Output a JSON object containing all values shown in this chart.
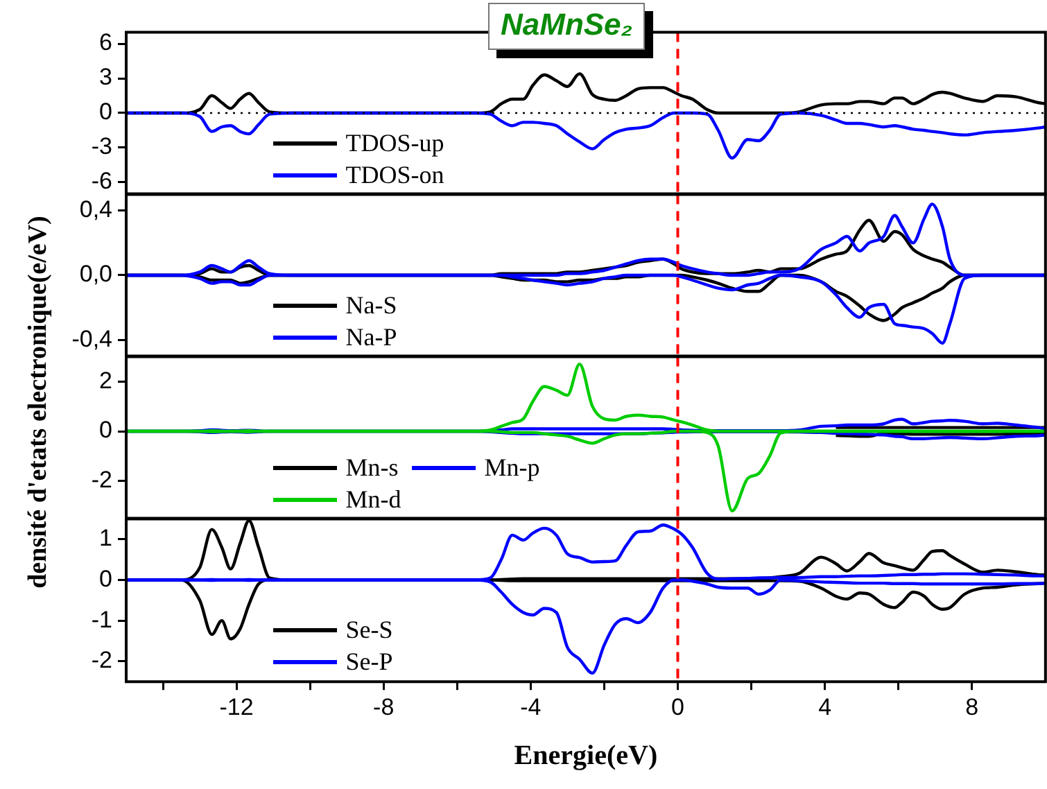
{
  "chart_data": [
    {
      "type": "line",
      "title": "NaMnSe₂",
      "ylabel": "densité d'etats electronique(e/eV)",
      "x": [
        -15,
        -13.5,
        -13,
        -12.67,
        -12.4,
        -12.16,
        -11.9,
        -11.66,
        -11.4,
        -11.1,
        -10.5,
        -5.5,
        -5.1,
        -4.8,
        -4.5,
        -4.2,
        -3.94,
        -3.63,
        -3.3,
        -3,
        -2.67,
        -2.32,
        -2,
        -1.7,
        -1.4,
        -1.08,
        -0.75,
        -0.4,
        -0.1,
        0.1,
        0.4,
        0.8,
        1.1,
        1.48,
        1.9,
        2.2,
        2.5,
        2.8,
        3.3,
        3.9,
        4.3,
        4.6,
        4.95,
        5.2,
        5.6,
        5.9,
        6.1,
        6.4,
        6.7,
        6.92,
        7.2,
        7.4,
        7.8,
        8.3,
        8.7,
        9.2,
        9.8,
        10
      ],
      "xlim": [
        -15,
        10
      ],
      "ylim": [
        -7,
        7
      ],
      "yticks": [
        -6,
        -3,
        0,
        3,
        6
      ],
      "tick_labels": "y",
      "grid": false,
      "legend": "bottom left",
      "ref_lines": [
        {
          "axis": "y",
          "value": 0,
          "color": "#000000",
          "line_style": "dotted"
        },
        {
          "axis": "x",
          "value": 0,
          "color": "#ff0000",
          "line_style": "dashed"
        }
      ],
      "series": [
        {
          "name": "TDOS-up",
          "color": "#000000",
          "values": [
            0,
            0,
            0.3,
            1.5,
            0.9,
            0.4,
            1.2,
            1.7,
            0.9,
            0.1,
            0,
            0,
            0.1,
            0.8,
            1.2,
            1.2,
            2.4,
            3.3,
            2.8,
            2.3,
            3.4,
            1.6,
            1.2,
            1.1,
            1.5,
            2.1,
            2.2,
            2.2,
            1.8,
            1.5,
            1.2,
            0.3,
            0,
            0,
            0,
            0,
            0,
            0,
            0.1,
            0.7,
            0.8,
            0.8,
            1.0,
            1.0,
            0.8,
            1.3,
            1.3,
            0.8,
            1.2,
            1.6,
            1.8,
            1.7,
            1.3,
            1.0,
            1.5,
            1.4,
            0.9,
            0.8
          ]
        },
        {
          "name": "TDOS-on",
          "color": "#0000ff",
          "values": [
            0,
            0,
            -0.3,
            -1.6,
            -1.2,
            -1.1,
            -1.6,
            -1.8,
            -1.0,
            -0.1,
            0,
            0,
            -0.1,
            -0.7,
            -1.1,
            -0.8,
            -0.8,
            -0.9,
            -1.1,
            -1.8,
            -2.5,
            -3.1,
            -2.3,
            -1.7,
            -1.4,
            -1.3,
            -1.1,
            -0.4,
            0,
            0,
            0,
            -0.1,
            -1.5,
            -3.9,
            -2.3,
            -2.4,
            -1.5,
            -0.1,
            0,
            -0.2,
            -0.6,
            -0.9,
            -0.9,
            -1.0,
            -1.2,
            -1.1,
            -1.2,
            -1.4,
            -1.5,
            -1.6,
            -1.7,
            -1.8,
            -1.9,
            -1.7,
            -1.6,
            -1.5,
            -1.3,
            -1.2
          ]
        }
      ]
    },
    {
      "type": "line",
      "x": [
        -15,
        -13.5,
        -13,
        -12.67,
        -12.4,
        -12.16,
        -11.9,
        -11.66,
        -11.4,
        -11.1,
        -10.5,
        -5.5,
        -5.1,
        -4.8,
        -4.5,
        -4.2,
        -3.94,
        -3.63,
        -3.3,
        -3,
        -2.67,
        -2.32,
        -2,
        -1.7,
        -1.4,
        -1.08,
        -0.75,
        -0.4,
        -0.1,
        0.1,
        0.4,
        0.8,
        1.1,
        1.48,
        1.9,
        2.2,
        2.5,
        2.8,
        3.3,
        3.9,
        4.3,
        4.6,
        4.95,
        5.2,
        5.6,
        5.9,
        6.1,
        6.4,
        6.7,
        6.92,
        7.2,
        7.4,
        7.8,
        8.3,
        8.7,
        9.2,
        9.8,
        10
      ],
      "xlim": [
        -15,
        10
      ],
      "ylim": [
        -0.5,
        0.5
      ],
      "yticks": [
        {
          "value": -0.4,
          "label": "-0,4"
        },
        {
          "value": 0,
          "label": "0,0"
        },
        {
          "value": 0.4,
          "label": "0,4"
        }
      ],
      "tick_labels": "y",
      "grid": false,
      "legend": "bottom left",
      "ref_lines": [
        {
          "axis": "x",
          "value": 0,
          "color": "#ff0000",
          "line_style": "dashed"
        }
      ],
      "series": [
        {
          "name": "Na-S",
          "color": "#000000",
          "values": [
            0,
            0,
            0.01,
            0.04,
            0.02,
            0.02,
            0.05,
            0.06,
            0.03,
            0,
            0,
            0,
            0,
            0.01,
            0.01,
            0.01,
            0.01,
            0.01,
            0.01,
            0.02,
            0.02,
            0.03,
            0.04,
            0.05,
            0.06,
            0.08,
            0.09,
            0.1,
            0.07,
            0.04,
            0.02,
            0.01,
            0.01,
            0.01,
            0.02,
            0.03,
            0.02,
            0.04,
            0.04,
            0.1,
            0.13,
            0.15,
            0.28,
            0.34,
            0.21,
            0.27,
            0.25,
            0.16,
            0.12,
            0.1,
            0.08,
            0.05,
            0,
            0,
            0,
            0,
            0,
            0
          ]
        },
        {
          "color": "#000000",
          "values": [
            0,
            0,
            -0.01,
            -0.03,
            -0.03,
            -0.03,
            -0.05,
            -0.04,
            -0.02,
            0,
            0,
            0,
            0,
            -0.01,
            -0.02,
            -0.03,
            -0.03,
            -0.03,
            -0.04,
            -0.04,
            -0.03,
            -0.03,
            -0.02,
            -0.02,
            -0.01,
            -0.01,
            0,
            0,
            0,
            0,
            -0.01,
            -0.03,
            -0.05,
            -0.08,
            -0.1,
            -0.1,
            -0.05,
            0,
            0,
            -0.04,
            -0.1,
            -0.13,
            -0.19,
            -0.24,
            -0.28,
            -0.24,
            -0.2,
            -0.17,
            -0.14,
            -0.11,
            -0.08,
            -0.04,
            0,
            0,
            0,
            0,
            0,
            0
          ]
        },
        {
          "name": "Na-P",
          "color": "#0000ff",
          "values": [
            0,
            0,
            0.02,
            0.06,
            0.04,
            0.02,
            0.06,
            0.09,
            0.05,
            0.01,
            0,
            0,
            0,
            0,
            0,
            0,
            0,
            0,
            0,
            0.01,
            0.01,
            0.02,
            0.03,
            0.05,
            0.07,
            0.09,
            0.1,
            0.1,
            0.08,
            0.06,
            0.04,
            0.02,
            0.01,
            0,
            0,
            0.01,
            0.02,
            0.02,
            0.04,
            0.16,
            0.2,
            0.24,
            0.15,
            0.2,
            0.24,
            0.37,
            0.3,
            0.2,
            0.35,
            0.44,
            0.3,
            0.1,
            0,
            0,
            0,
            0,
            0,
            0
          ]
        },
        {
          "color": "#0000ff",
          "values": [
            0,
            0,
            -0.02,
            -0.05,
            -0.04,
            -0.04,
            -0.06,
            -0.06,
            -0.03,
            0,
            0,
            0,
            0,
            0,
            -0.01,
            -0.02,
            -0.03,
            -0.04,
            -0.05,
            -0.06,
            -0.05,
            -0.04,
            -0.02,
            -0.01,
            0,
            0,
            0,
            0,
            0,
            -0.01,
            -0.03,
            -0.06,
            -0.08,
            -0.09,
            -0.06,
            -0.05,
            -0.02,
            0,
            -0.01,
            -0.04,
            -0.12,
            -0.2,
            -0.26,
            -0.2,
            -0.18,
            -0.3,
            -0.31,
            -0.32,
            -0.33,
            -0.36,
            -0.42,
            -0.3,
            -0.02,
            0,
            0,
            0,
            0,
            0
          ]
        }
      ]
    },
    {
      "type": "line",
      "x": [
        -15,
        -13.5,
        -13,
        -12.67,
        -12.4,
        -12.16,
        -11.9,
        -11.66,
        -11.4,
        -11.1,
        -10.5,
        -5.5,
        -5.1,
        -4.8,
        -4.5,
        -4.2,
        -3.94,
        -3.63,
        -3.3,
        -3,
        -2.67,
        -2.32,
        -2,
        -1.7,
        -1.4,
        -1.08,
        -0.75,
        -0.4,
        -0.1,
        0.1,
        0.4,
        0.8,
        1.1,
        1.48,
        1.9,
        2.2,
        2.5,
        2.8,
        3.3,
        3.9,
        4.3,
        4.6,
        4.95,
        5.2,
        5.6,
        5.9,
        6.1,
        6.4,
        6.7,
        6.92,
        7.2,
        7.4,
        7.8,
        8.3,
        8.7,
        9.2,
        9.8,
        10
      ],
      "xlim": [
        -15,
        10
      ],
      "ylim": [
        -3.5,
        3
      ],
      "yticks": [
        -2,
        0,
        2
      ],
      "tick_labels": "y",
      "grid": false,
      "legend": "bottom left",
      "ref_lines": [
        {
          "axis": "x",
          "value": 0,
          "color": "#ff0000",
          "line_style": "dashed"
        }
      ],
      "series": [
        {
          "name": "Mn-s",
          "color": "#000000",
          "values": [
            null,
            null,
            null,
            null,
            null,
            null,
            null,
            null,
            null,
            null,
            null,
            null,
            null,
            null,
            null,
            null,
            null,
            null,
            null,
            null,
            null,
            null,
            null,
            null,
            null,
            null,
            null,
            null,
            null,
            null,
            null,
            null,
            null,
            null,
            null,
            null,
            null,
            null,
            null,
            null,
            0.15,
            0.15,
            0.15,
            0.15,
            0.15,
            0.15,
            0.15,
            0.15,
            0.15,
            0.15,
            0.15,
            0.15,
            0.15,
            0.15,
            0.15,
            0.15,
            0.15,
            0.15
          ]
        },
        {
          "color": "#000000",
          "values": [
            null,
            null,
            null,
            null,
            null,
            null,
            null,
            null,
            null,
            null,
            null,
            null,
            null,
            null,
            null,
            null,
            null,
            null,
            null,
            null,
            null,
            null,
            null,
            null,
            null,
            null,
            null,
            null,
            null,
            null,
            null,
            null,
            null,
            null,
            null,
            null,
            null,
            null,
            null,
            null,
            -0.17,
            -0.18,
            -0.2,
            -0.2,
            -0.08,
            -0.1,
            -0.1,
            -0.12,
            -0.12,
            -0.12,
            -0.12,
            -0.12,
            -0.12,
            -0.12,
            -0.12,
            -0.1,
            -0.08,
            -0.08
          ]
        },
        {
          "name": "Mn-p",
          "color": "#0000ff",
          "values": [
            0,
            0,
            0.02,
            0.06,
            0.04,
            0.02,
            0.03,
            0.04,
            0.02,
            0,
            0,
            0,
            0.02,
            0.05,
            0.1,
            0.1,
            0.1,
            0.1,
            0.1,
            0.1,
            0.1,
            0.1,
            0.1,
            0.1,
            0.1,
            0.1,
            0.1,
            0.1,
            0.08,
            0.06,
            0.04,
            0.02,
            0.02,
            0.02,
            0.02,
            0.02,
            0.02,
            0.02,
            0.05,
            0.2,
            0.22,
            0.25,
            0.25,
            0.25,
            0.3,
            0.45,
            0.48,
            0.3,
            0.35,
            0.4,
            0.42,
            0.44,
            0.4,
            0.3,
            0.32,
            0.25,
            0.15,
            0.1
          ]
        },
        {
          "color": "#0000ff",
          "values": [
            0,
            0,
            -0.02,
            -0.05,
            -0.03,
            -0.02,
            -0.03,
            -0.04,
            -0.02,
            0,
            0,
            0,
            -0.02,
            -0.05,
            -0.08,
            -0.1,
            -0.1,
            -0.1,
            -0.1,
            -0.1,
            -0.1,
            -0.1,
            -0.1,
            -0.1,
            -0.1,
            -0.1,
            -0.08,
            -0.06,
            -0.04,
            -0.03,
            -0.02,
            -0.02,
            -0.02,
            -0.02,
            -0.02,
            -0.02,
            -0.02,
            -0.02,
            -0.03,
            -0.05,
            -0.08,
            -0.1,
            -0.11,
            -0.12,
            -0.15,
            -0.2,
            -0.22,
            -0.3,
            -0.3,
            -0.28,
            -0.26,
            -0.25,
            -0.27,
            -0.3,
            -0.26,
            -0.2,
            -0.18,
            -0.15
          ]
        },
        {
          "name": "Mn-d",
          "color": "#00cc00",
          "values": [
            0,
            0,
            0,
            0.02,
            0.01,
            0,
            0.01,
            0.02,
            0,
            0,
            0,
            0,
            0.05,
            0.2,
            0.35,
            0.5,
            1.2,
            1.8,
            1.65,
            1.45,
            2.7,
            1.0,
            0.5,
            0.45,
            0.6,
            0.65,
            0.6,
            0.57,
            0.45,
            0.38,
            0.25,
            0.05,
            0,
            0,
            0,
            0,
            0,
            0,
            0,
            0,
            0,
            0,
            0,
            0,
            0,
            0,
            0,
            0,
            0,
            0,
            0,
            0,
            0,
            0,
            0,
            0,
            0,
            0
          ]
        },
        {
          "color": "#00cc00",
          "values": [
            0,
            0,
            0,
            -0.02,
            -0.01,
            0,
            -0.01,
            -0.02,
            0,
            0,
            0,
            0,
            0,
            -0.02,
            -0.05,
            -0.05,
            -0.05,
            -0.1,
            -0.15,
            -0.2,
            -0.35,
            -0.48,
            -0.3,
            -0.15,
            -0.1,
            -0.1,
            -0.08,
            -0.05,
            0,
            0,
            0,
            -0.05,
            -0.6,
            -3.2,
            -1.9,
            -1.7,
            -1.0,
            -0.07,
            0,
            0,
            0,
            0,
            0,
            0,
            0,
            0,
            0,
            0,
            0,
            0,
            0,
            0,
            0,
            0,
            0,
            0,
            0,
            0
          ]
        }
      ]
    },
    {
      "type": "line",
      "xlabel": "Energie(eV)",
      "x": [
        -15,
        -13.5,
        -13,
        -12.67,
        -12.4,
        -12.16,
        -11.9,
        -11.66,
        -11.4,
        -11.1,
        -10.5,
        -5.5,
        -5.1,
        -4.8,
        -4.5,
        -4.2,
        -3.94,
        -3.63,
        -3.3,
        -3,
        -2.67,
        -2.32,
        -2,
        -1.7,
        -1.4,
        -1.08,
        -0.75,
        -0.4,
        -0.1,
        0.1,
        0.4,
        0.8,
        1.1,
        1.48,
        1.9,
        2.2,
        2.5,
        2.8,
        3.3,
        3.9,
        4.3,
        4.6,
        4.95,
        5.2,
        5.6,
        5.9,
        6.1,
        6.4,
        6.7,
        6.92,
        7.2,
        7.4,
        7.8,
        8.3,
        8.7,
        9.2,
        9.8,
        10
      ],
      "xlim": [
        -15,
        10
      ],
      "xticks": [
        {
          "value": -14,
          "label": null
        },
        -12,
        {
          "value": -10,
          "label": null
        },
        -8,
        {
          "value": -6,
          "label": null
        },
        -4,
        {
          "value": -2,
          "label": null
        },
        0,
        {
          "value": 2,
          "label": null
        },
        4,
        {
          "value": 6,
          "label": null
        },
        8
      ],
      "ylim": [
        -2.5,
        1.5
      ],
      "yticks": [
        -2,
        -1,
        0,
        1
      ],
      "grid": false,
      "legend": "bottom left",
      "ref_lines": [
        {
          "axis": "x",
          "value": 0,
          "color": "#ff0000",
          "line_style": "dashed"
        }
      ],
      "series": [
        {
          "name": "Se-S",
          "color": "#000000",
          "values": [
            0,
            0,
            0.3,
            1.24,
            0.8,
            0.27,
            0.9,
            1.46,
            0.8,
            0.05,
            0,
            0,
            0,
            0.01,
            0.02,
            0.03,
            0.03,
            0.03,
            0.03,
            0.03,
            0.03,
            0.03,
            0.03,
            0.03,
            0.03,
            0.03,
            0.03,
            0.03,
            0.03,
            0.03,
            0.03,
            0.03,
            0.03,
            0.03,
            0.03,
            0.04,
            0.05,
            0.08,
            0.16,
            0.56,
            0.4,
            0.22,
            0.45,
            0.65,
            0.42,
            0.35,
            0.3,
            0.24,
            0.5,
            0.7,
            0.72,
            0.6,
            0.39,
            0.19,
            0.24,
            0.2,
            0.13,
            0.12
          ]
        },
        {
          "color": "#000000",
          "values": [
            0,
            0,
            -0.5,
            -1.34,
            -1.0,
            -1.45,
            -1.2,
            -0.6,
            -0.1,
            0,
            0,
            0,
            0,
            -0.01,
            -0.02,
            -0.02,
            -0.02,
            -0.02,
            -0.02,
            -0.02,
            -0.02,
            -0.02,
            -0.02,
            -0.02,
            -0.02,
            -0.02,
            -0.02,
            -0.02,
            -0.02,
            -0.02,
            -0.02,
            -0.02,
            -0.02,
            -0.02,
            -0.02,
            -0.02,
            -0.02,
            -0.02,
            -0.03,
            -0.2,
            -0.4,
            -0.47,
            -0.32,
            -0.35,
            -0.6,
            -0.68,
            -0.55,
            -0.3,
            -0.4,
            -0.6,
            -0.72,
            -0.68,
            -0.35,
            -0.2,
            -0.18,
            -0.12,
            -0.09,
            -0.08
          ]
        },
        {
          "name": "Se-P",
          "color": "#0000ff",
          "values": [
            0,
            0,
            0,
            0.01,
            0,
            0,
            0,
            0.01,
            0,
            0,
            0,
            0,
            0.05,
            0.5,
            1.1,
            0.98,
            1.15,
            1.27,
            1.1,
            0.64,
            0.55,
            0.44,
            0.45,
            0.47,
            0.85,
            1.18,
            1.2,
            1.35,
            1.25,
            1.13,
            0.8,
            0.16,
            0.02,
            0.03,
            0.04,
            0.05,
            0.05,
            0.06,
            0.06,
            0.08,
            0.08,
            0.09,
            0.1,
            0.1,
            0.11,
            0.12,
            0.13,
            0.13,
            0.14,
            0.14,
            0.15,
            0.15,
            0.15,
            0.14,
            0.13,
            0.12,
            0.1,
            0.1
          ]
        },
        {
          "color": "#0000ff",
          "values": [
            0,
            0,
            0,
            -0.01,
            0,
            0,
            0,
            -0.01,
            0,
            0,
            0,
            0,
            -0.05,
            -0.3,
            -0.6,
            -0.8,
            -0.86,
            -0.7,
            -0.8,
            -1.66,
            -1.95,
            -2.29,
            -1.6,
            -1.09,
            -0.95,
            -1.05,
            -0.8,
            -0.2,
            0,
            0,
            -0.03,
            -0.1,
            -0.18,
            -0.2,
            -0.2,
            -0.35,
            -0.25,
            0,
            -0.02,
            -0.05,
            -0.06,
            -0.07,
            -0.08,
            -0.08,
            -0.08,
            -0.09,
            -0.09,
            -0.09,
            -0.1,
            -0.1,
            -0.1,
            -0.1,
            -0.1,
            -0.1,
            -0.1,
            -0.09,
            -0.09,
            -0.08
          ]
        }
      ]
    }
  ]
}
